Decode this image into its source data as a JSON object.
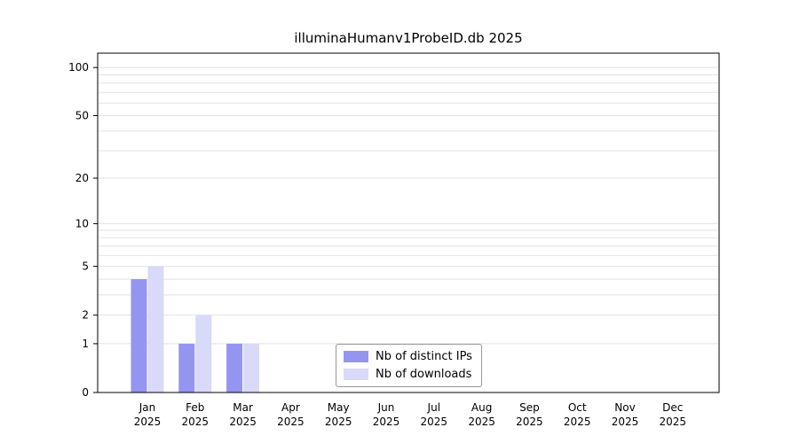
{
  "page": {
    "background": "#ffffff"
  },
  "chart_data": {
    "type": "bar",
    "title": "illuminaHumanv1ProbeID.db 2025",
    "categories": [
      "Jan",
      "Feb",
      "Mar",
      "Apr",
      "May",
      "Jun",
      "Jul",
      "Aug",
      "Sep",
      "Oct",
      "Nov",
      "Dec"
    ],
    "year_label": "2025",
    "series": [
      {
        "name": "Nb of distinct IPs",
        "color": "#9495f0",
        "values": [
          4,
          1,
          1,
          0,
          0,
          0,
          0,
          0,
          0,
          0,
          0,
          0
        ]
      },
      {
        "name": "Nb of downloads",
        "color": "#d9d9fa",
        "values": [
          5,
          2,
          1,
          0,
          0,
          0,
          0,
          0,
          0,
          0,
          0,
          0
        ]
      }
    ],
    "y_ticks": [
      0,
      1,
      2,
      5,
      10,
      20,
      50,
      100
    ],
    "y_minor_gridlines": [
      3,
      4,
      6,
      7,
      8,
      9,
      30,
      40,
      60,
      70,
      80,
      90
    ],
    "y_scale": "log(1+v)",
    "ylim": [
      0,
      100
    ],
    "grid": true,
    "grid_color": "#e2e2e2",
    "axis_color": "#000000",
    "legend_position": "bottom-center"
  }
}
